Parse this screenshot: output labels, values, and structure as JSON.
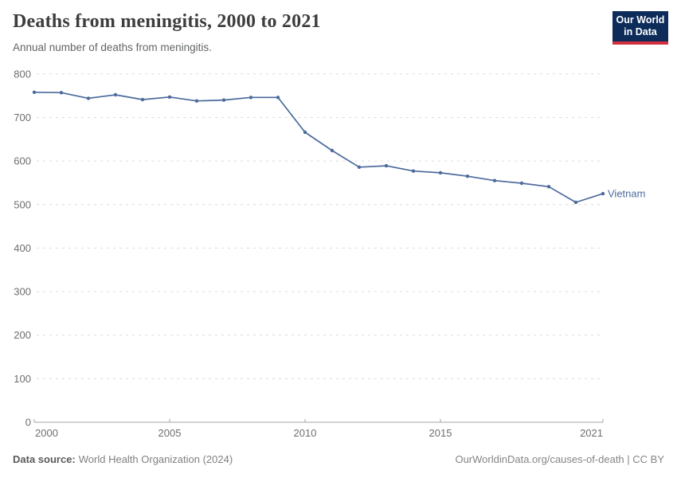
{
  "header": {
    "title": "Deaths from meningitis, 2000 to 2021",
    "subtitle": "Annual number of deaths from meningitis."
  },
  "logo": {
    "line1": "Our World",
    "line2": "in Data",
    "bg_color": "#0d2c5a",
    "bar_color": "#d2303f"
  },
  "chart_data": {
    "type": "line",
    "title": "Deaths from meningitis, 2000 to 2021",
    "subtitle": "Annual number of deaths from meningitis.",
    "x": [
      2000,
      2001,
      2002,
      2003,
      2004,
      2005,
      2006,
      2007,
      2008,
      2009,
      2010,
      2011,
      2012,
      2013,
      2014,
      2015,
      2016,
      2017,
      2018,
      2019,
      2020,
      2021
    ],
    "series": [
      {
        "name": "Vietnam",
        "color": "#4C6A9C",
        "values": [
          758,
          757,
          744,
          752,
          741,
          747,
          738,
          740,
          746,
          746,
          666,
          624,
          586,
          589,
          577,
          573,
          565,
          555,
          549,
          541,
          505,
          525
        ]
      }
    ],
    "xlim": [
      2000,
      2021
    ],
    "ylim": [
      0,
      800
    ],
    "xticks": [
      2000,
      2005,
      2010,
      2015,
      2021
    ],
    "yticks": [
      0,
      100,
      200,
      300,
      400,
      500,
      600,
      700,
      800
    ],
    "xlabel": "",
    "ylabel": "",
    "grid": "horizontal-dashed",
    "legend_position": "end-of-line-label"
  },
  "footer": {
    "datasource_label": "Data source:",
    "datasource_value": "World Health Organization (2024)",
    "attribution": "OurWorldinData.org/causes-of-death | CC BY"
  },
  "colors": {
    "line": "#4C6A9C",
    "grid": "#dcdcdc",
    "axis": "#a3a3a3",
    "tick_text": "#6e6e6e",
    "title_text": "#3d3d3d",
    "subtitle_text": "#616568"
  }
}
